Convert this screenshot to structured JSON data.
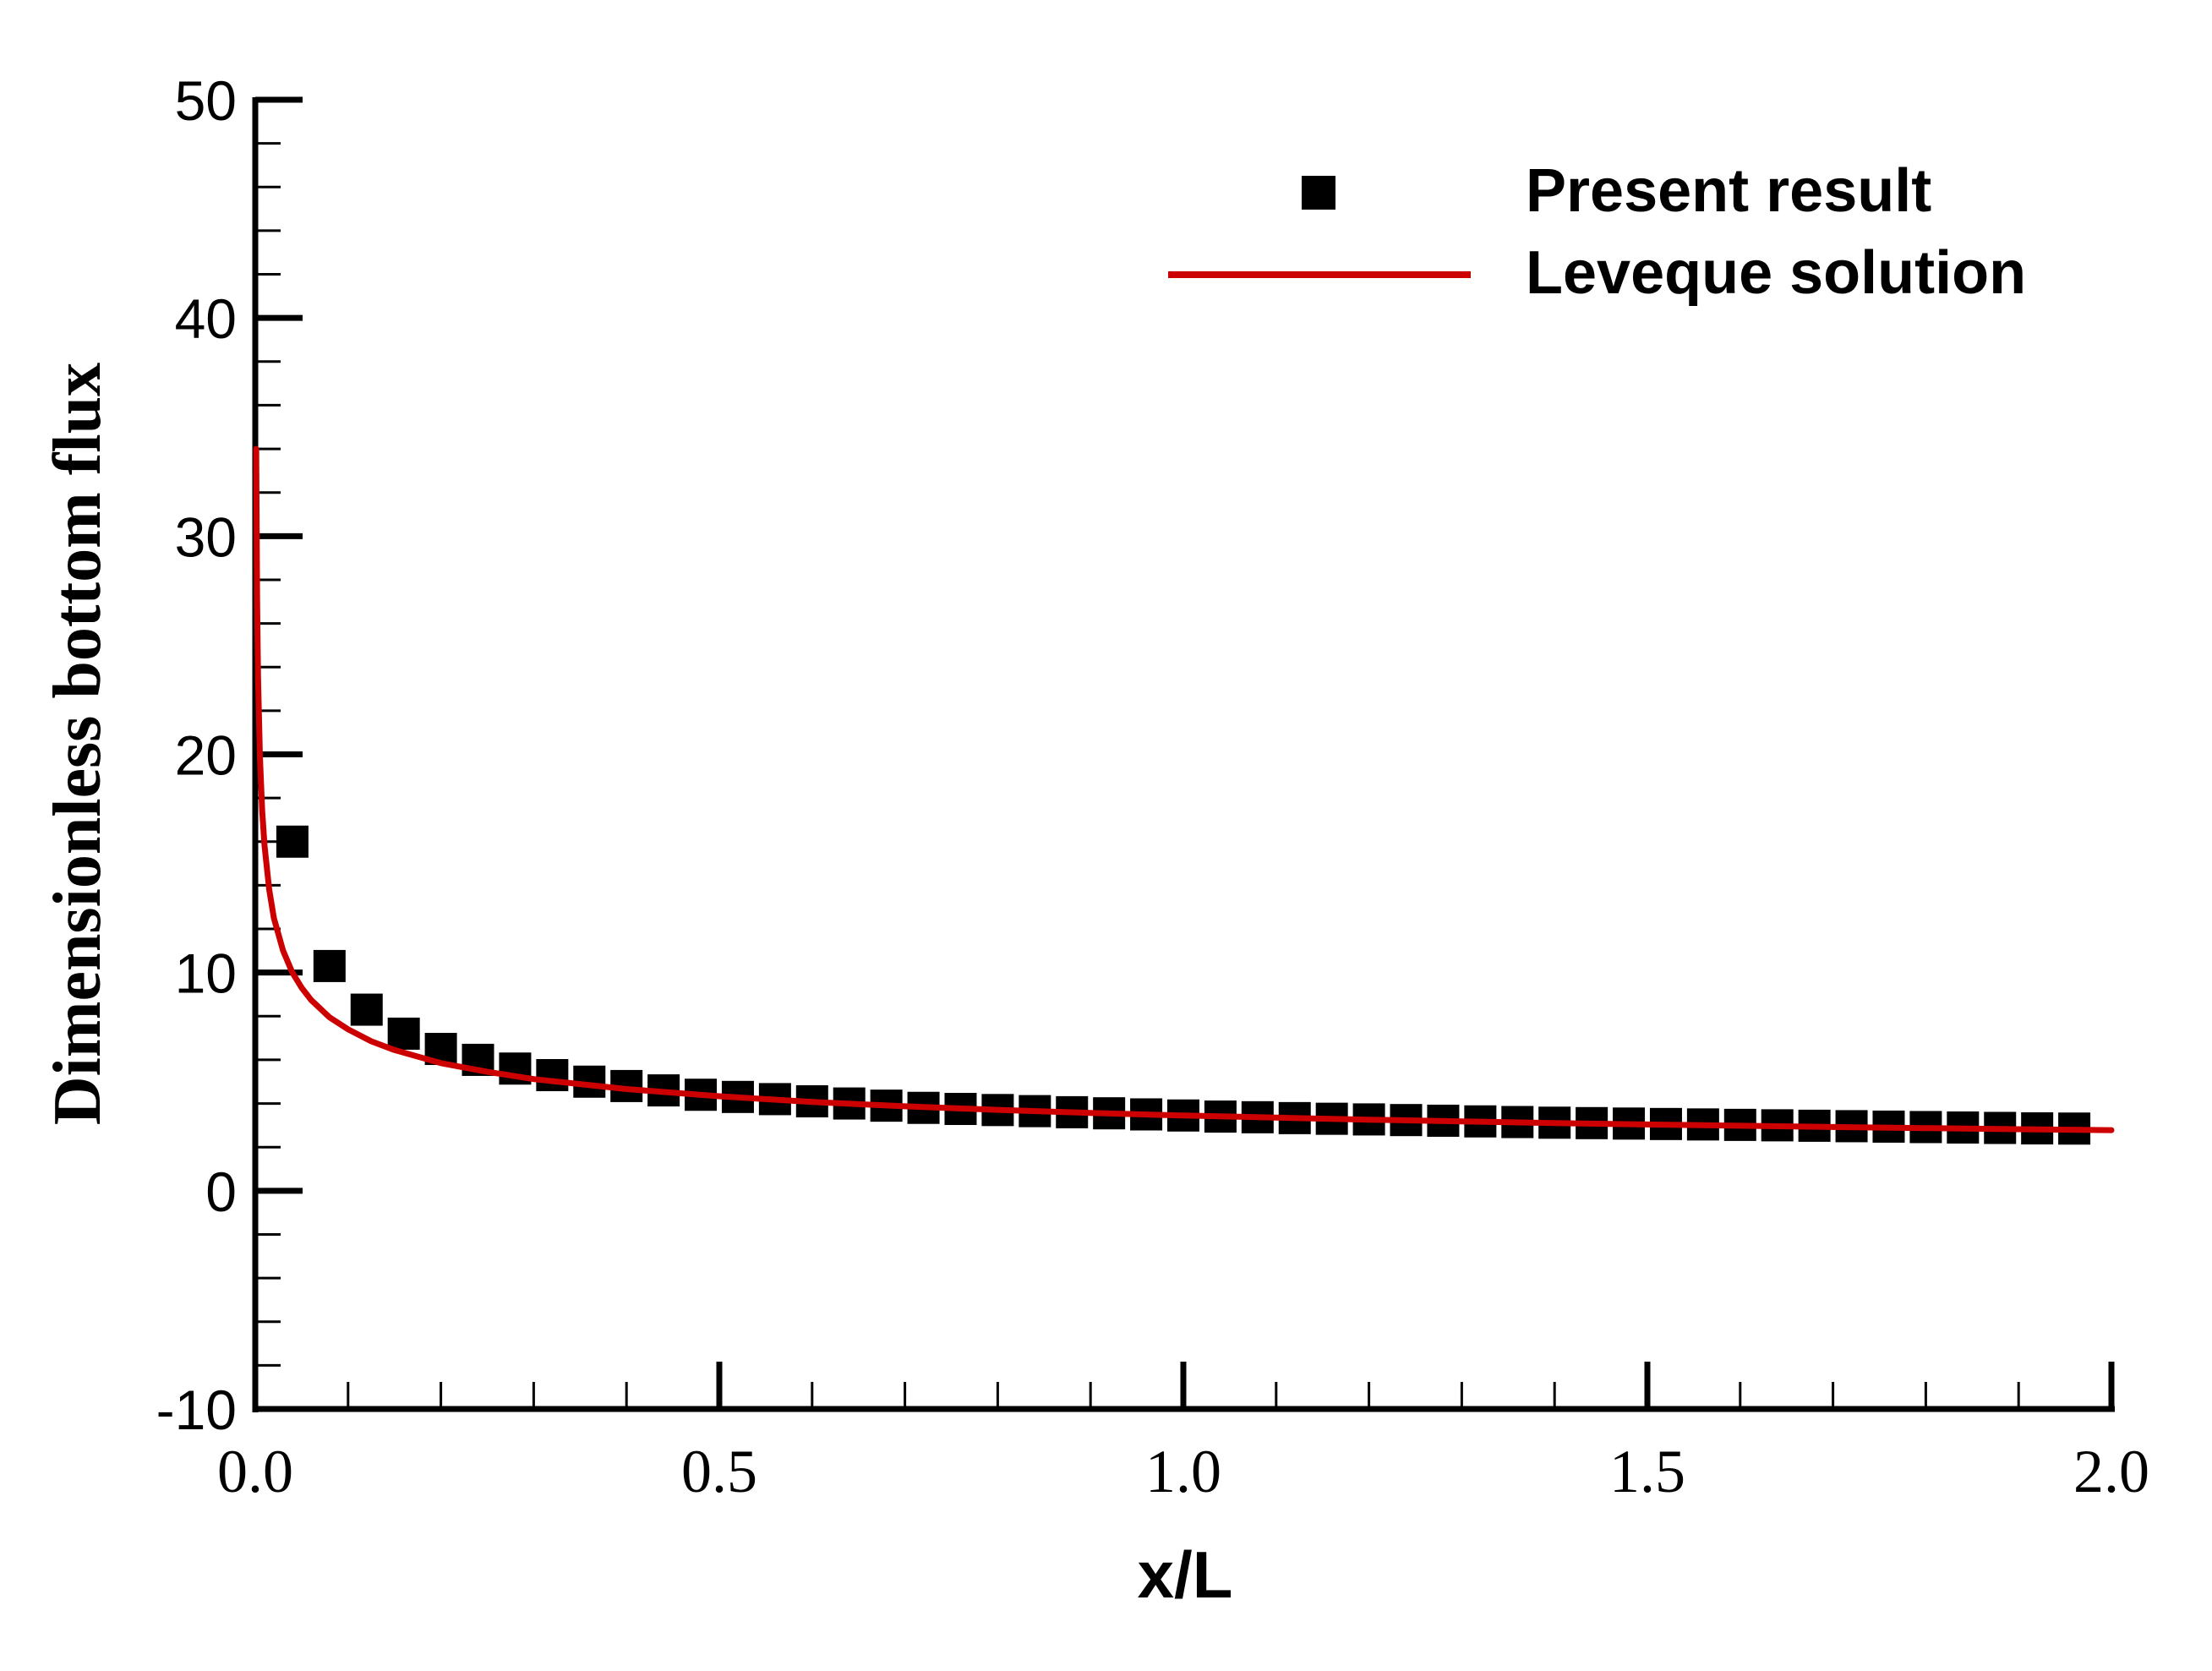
{
  "chart_data": {
    "type": "line",
    "xlabel": "x/L",
    "ylabel": "Dimensionless bottom flux",
    "xlim": [
      0,
      2
    ],
    "ylim": [
      -10,
      50
    ],
    "x_ticks": [
      "0.0",
      "0.5",
      "1.0",
      "1.5",
      "2.0"
    ],
    "y_ticks": [
      "-10",
      "0",
      "10",
      "20",
      "30",
      "40",
      "50"
    ],
    "grid": false,
    "legend_position": "top-right",
    "series": [
      {
        "name": "Present result",
        "kind": "scatter",
        "marker": "square",
        "color": "#000000",
        "x": [
          0.04,
          0.08,
          0.12,
          0.16,
          0.2,
          0.24,
          0.28,
          0.32,
          0.36,
          0.4,
          0.44,
          0.48,
          0.52,
          0.56,
          0.6,
          0.64,
          0.68,
          0.72,
          0.76,
          0.8,
          0.84,
          0.88,
          0.92,
          0.96,
          1.0,
          1.04,
          1.08,
          1.12,
          1.16,
          1.2,
          1.24,
          1.28,
          1.32,
          1.36,
          1.4,
          1.44,
          1.48,
          1.52,
          1.56,
          1.6,
          1.64,
          1.68,
          1.72,
          1.76,
          1.8,
          1.84,
          1.88,
          1.92,
          1.96
        ],
        "y": [
          16.0,
          10.3,
          8.3,
          7.2,
          6.5,
          6.0,
          5.6,
          5.3,
          5.0,
          4.8,
          4.6,
          4.4,
          4.3,
          4.2,
          4.1,
          4.0,
          3.9,
          3.8,
          3.75,
          3.7,
          3.65,
          3.6,
          3.55,
          3.5,
          3.45,
          3.4,
          3.37,
          3.33,
          3.3,
          3.27,
          3.24,
          3.21,
          3.18,
          3.15,
          3.12,
          3.1,
          3.08,
          3.06,
          3.04,
          3.02,
          3.0,
          2.98,
          2.96,
          2.94,
          2.92,
          2.9,
          2.88,
          2.86,
          2.85
        ]
      },
      {
        "name": "Leveque solution",
        "kind": "line",
        "color": "#cc0000",
        "x": [
          0.001,
          0.002,
          0.003,
          0.005,
          0.0075,
          0.01,
          0.015,
          0.02,
          0.03,
          0.04,
          0.05,
          0.06,
          0.08,
          0.1,
          0.125,
          0.15,
          0.2,
          0.25,
          0.3,
          0.4,
          0.5,
          0.6,
          0.7,
          0.8,
          0.9,
          1.0,
          1.1,
          1.2,
          1.3,
          1.4,
          1.5,
          1.6,
          1.7,
          1.8,
          1.9,
          2.0
        ],
        "y": [
          34.0,
          27.0,
          23.5,
          19.9,
          17.4,
          15.8,
          13.8,
          12.5,
          11.0,
          10.0,
          9.3,
          8.75,
          7.95,
          7.4,
          6.85,
          6.45,
          5.85,
          5.45,
          5.12,
          4.66,
          4.33,
          4.07,
          3.87,
          3.71,
          3.57,
          3.45,
          3.35,
          3.26,
          3.18,
          3.1,
          3.04,
          2.98,
          2.92,
          2.87,
          2.82,
          2.78
        ]
      }
    ]
  }
}
